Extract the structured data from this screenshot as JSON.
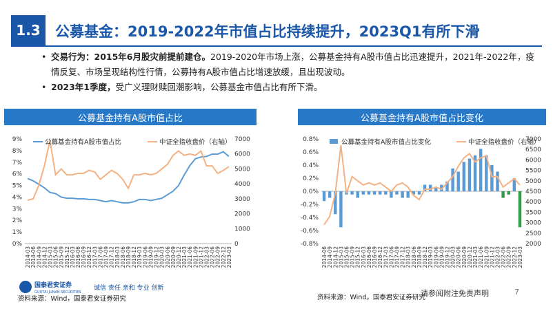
{
  "header": {
    "section_number": "1.3",
    "title": "公募基金：2019-2022年市值占比持续提升，2023Q1有所下滑"
  },
  "bullets": [
    {
      "label": "交易行为：2015年6月股灾前提前建仓。",
      "text": "2019-2020年市场上涨，公募基金持有A股市值占比迅速提升，2021年-2022年，疫情反复、市场呈现结构性行情，公募持有A股市值占比增速放缓，且出现波动。"
    },
    {
      "label": "2023年1季度，",
      "text": "受广义理财赎回潮影响，公募基金市值占比有所下滑。"
    }
  ],
  "colors": {
    "accent": "#1a57a8",
    "chart_header": "#2878c8",
    "share_line": "#5b9bd5",
    "index_line": "#f4b183",
    "bar_positive": "#5b9bd5",
    "bar_negative_last": "#2e9e48"
  },
  "footer": {
    "source_left": "资料来源：Wind，国泰君安证券研究",
    "source_right": "资料来源：Wind，国泰君安证券研究",
    "disclaimer": "请参阅附注免责声明",
    "page": "7",
    "logo_name": "国泰君安证券",
    "logo_en": "GUOTAI JUNAN SECURITIES",
    "slogan": "诚信 责任 亲和 专业 创新"
  },
  "chart_data": [
    {
      "type": "line",
      "title": "公募基金持有A股市值占比",
      "x": [
        "2014-03",
        "2014-06",
        "2014-09",
        "2014-12",
        "2015-03",
        "2015-06",
        "2015-09",
        "2015-12",
        "2016-03",
        "2016-06",
        "2016-09",
        "2016-12",
        "2017-03",
        "2017-06",
        "2017-09",
        "2017-12",
        "2018-03",
        "2018-06",
        "2018-09",
        "2018-12",
        "2019-03",
        "2019-06",
        "2019-09",
        "2019-12",
        "2020-03",
        "2020-06",
        "2020-09",
        "2020-12",
        "2021-03",
        "2021-06",
        "2021-09",
        "2021-12",
        "2022-03",
        "2022-06",
        "2022-09",
        "2022-12",
        "2023-03"
      ],
      "x_tick_labels": [
        "2014-03",
        "2014-09",
        "2015-03",
        "2015-09",
        "2016-03",
        "2016-09",
        "2017-03",
        "2017-09",
        "2018-03",
        "2018-09",
        "2019-03",
        "2019-09",
        "2020-03",
        "2020-09",
        "2021-03",
        "2021-09",
        "2022-03",
        "2022-09",
        "2023-03",
        "2014-06",
        "2014-12",
        "2015-06",
        "2015-12",
        "2016-06",
        "2016-12",
        "2017-06",
        "2017-12",
        "2018-06",
        "2018-12",
        "2019-06",
        "2019-12",
        "2020-06",
        "2020-12",
        "2021-06",
        "2021-12",
        "2022-06",
        "2022-12"
      ],
      "series": [
        {
          "name": "公募基金持有A股市值占比",
          "axis": "left",
          "values": [
            5.6,
            5.4,
            5.1,
            4.8,
            4.4,
            4.3,
            4.0,
            3.9,
            3.9,
            3.85,
            3.85,
            3.8,
            3.8,
            3.7,
            3.6,
            3.7,
            3.6,
            3.5,
            3.5,
            3.6,
            3.8,
            3.8,
            3.7,
            3.8,
            3.9,
            4.2,
            4.5,
            5.0,
            5.9,
            6.7,
            7.3,
            7.45,
            7.5,
            7.7,
            7.7,
            7.9,
            7.5
          ]
        },
        {
          "name": "中证全指收盘价（右轴）",
          "axis": "right",
          "values": [
            2900,
            3000,
            3900,
            5200,
            6900,
            4600,
            5000,
            4600,
            4600,
            4700,
            4700,
            4900,
            4800,
            4300,
            4600,
            4900,
            4700,
            4300,
            3700,
            4600,
            4600,
            4700,
            4600,
            4700,
            5000,
            5300,
            5900,
            6200,
            5900,
            6000,
            5900,
            6200,
            5200,
            5200,
            4700,
            4900,
            5150
          ]
        }
      ],
      "ylim_left": [
        0,
        9
      ],
      "ylim_right": [
        0,
        7000
      ],
      "y_ticks_left": [
        "0%",
        "1%",
        "2%",
        "3%",
        "4%",
        "5%",
        "6%",
        "7%",
        "8%",
        "9%"
      ],
      "y_ticks_right": [
        "0",
        "1000",
        "2000",
        "3000",
        "4000",
        "5000",
        "6000",
        "7000"
      ],
      "legend": [
        "公募基金持有A股市值占比",
        "中证全指收盘价（右轴）"
      ]
    },
    {
      "type": "bar",
      "title": "公募基金持有A股市值占比变化",
      "x": [
        "2014-06",
        "2014-09",
        "2014-12",
        "2015-03",
        "2015-06",
        "2015-09",
        "2015-12",
        "2016-03",
        "2016-06",
        "2016-09",
        "2016-12",
        "2017-03",
        "2017-06",
        "2017-09",
        "2017-12",
        "2018-03",
        "2018-06",
        "2018-09",
        "2018-12",
        "2019-03",
        "2019-06",
        "2019-09",
        "2019-12",
        "2020-03",
        "2020-06",
        "2020-09",
        "2020-12",
        "2021-03",
        "2021-06",
        "2021-09",
        "2021-12",
        "2022-03",
        "2022-06",
        "2022-09",
        "2022-12",
        "2023-03"
      ],
      "x_tick_labels": [
        "2014-06",
        "2014-12",
        "2015-06",
        "2015-12",
        "2016-06",
        "2016-12",
        "2017-06",
        "2017-12",
        "2018-06",
        "2018-12",
        "2019-06",
        "2019-12",
        "2020-06",
        "2020-12",
        "2021-06",
        "2021-12",
        "2022-06",
        "2022-12",
        "2014-09",
        "2015-03",
        "2015-09",
        "2016-03",
        "2016-09",
        "2017-03",
        "2017-09",
        "2018-03",
        "2018-09",
        "2019-03",
        "2019-09",
        "2020-03",
        "2020-09",
        "2021-03",
        "2021-09",
        "2022-03",
        "2022-09",
        "2023-03"
      ],
      "series": [
        {
          "name": "公募基金持有A股市值占比变化",
          "axis": "left",
          "values": [
            -0.15,
            -0.1,
            -0.35,
            -0.55,
            -0.05,
            -0.05,
            -0.1,
            -0.05,
            -0.05,
            -0.05,
            -0.05,
            -0.05,
            -0.1,
            -0.05,
            -0.1,
            -0.1,
            -0.05,
            -0.05,
            0.1,
            0.1,
            0.05,
            0.1,
            0.15,
            0.35,
            0.3,
            0.45,
            0.5,
            0.55,
            0.65,
            0.55,
            0.4,
            0.3,
            -0.1,
            -0.05,
            0.2,
            -0.55
          ]
        },
        {
          "name": "中证全指收盘价（右轴）",
          "axis": "right",
          "values": [
            2900,
            3300,
            4400,
            6700,
            4400,
            5200,
            5000,
            4800,
            4900,
            4800,
            4900,
            4700,
            4500,
            4800,
            4900,
            4700,
            4300,
            4100,
            4600,
            4600,
            4700,
            4600,
            4900,
            5200,
            5700,
            6100,
            6300,
            5900,
            6100,
            6200,
            5200,
            5200,
            4700,
            4900,
            5100,
            4800
          ]
        }
      ],
      "ylim_left": [
        -0.8,
        0.8
      ],
      "ylim_right": [
        2000,
        7000
      ],
      "y_ticks_left": [
        "-0.8%",
        "-0.6%",
        "-0.4%",
        "-0.2%",
        "0.0%",
        "0.2%",
        "0.4%",
        "0.6%",
        "0.8%"
      ],
      "y_ticks_right": [
        "2000",
        "2500",
        "3000",
        "3500",
        "4000",
        "4500",
        "5000",
        "5500",
        "6000",
        "6500",
        "7000"
      ],
      "legend": [
        "公募基金持有A股市值占比变化",
        "中证全指收盘价（右轴）"
      ]
    }
  ]
}
